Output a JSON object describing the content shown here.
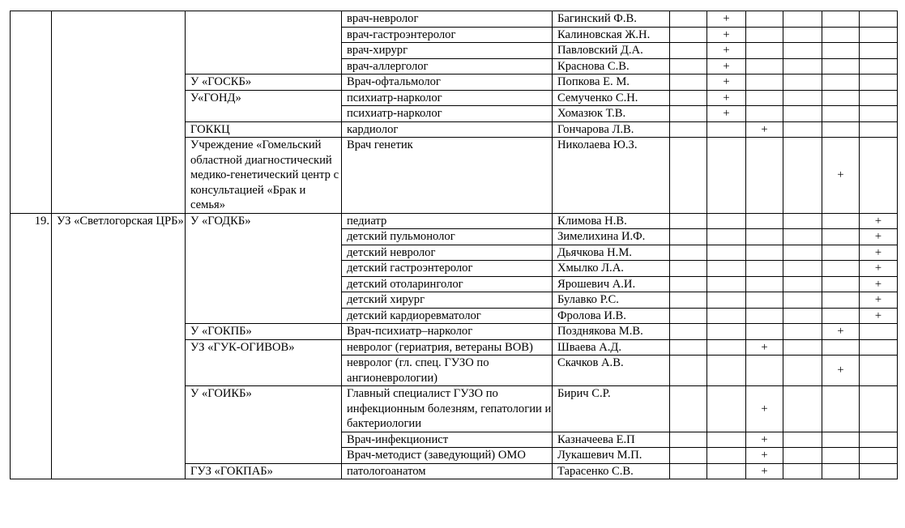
{
  "mark_symbol": "+",
  "groups": [
    {
      "number": "",
      "organization": "",
      "institutions": [
        {
          "name": "",
          "rows": [
            {
              "specialty": "врач-невролог",
              "doctor": "Багинский Ф.В.",
              "mark_column": 1
            },
            {
              "specialty": "врач-гастроэнтеролог",
              "doctor": "Калиновская Ж.Н.",
              "mark_column": 1
            },
            {
              "specialty": "врач-хирург",
              "doctor": "Павловский Д.А.",
              "mark_column": 1
            },
            {
              "specialty": "врач-аллерголог",
              "doctor": "Краснова С.В.",
              "mark_column": 1
            }
          ]
        },
        {
          "name": "У «ГОСКБ»",
          "rows": [
            {
              "specialty": "Врач-офтальмолог",
              "doctor": "Попкова Е. М.",
              "mark_column": 1
            }
          ]
        },
        {
          "name": "У«ГОНД»",
          "rows": [
            {
              "specialty": "психиатр-нарколог",
              "doctor": "Семученко С.Н.",
              "mark_column": 1
            },
            {
              "specialty": "психиатр-нарколог",
              "doctor": "Хомазюк Т.В.",
              "mark_column": 1
            }
          ]
        },
        {
          "name": "ГОККЦ",
          "rows": [
            {
              "specialty": "кардиолог",
              "doctor": "Гончарова Л.В.",
              "mark_column": 2
            }
          ]
        },
        {
          "name": "Учреждение «Гомельский областной диагностический медико-генетический центр с консультацией «Брак и семья»",
          "rows": [
            {
              "specialty": "Врач генетик",
              "doctor": "Николаева Ю.З.",
              "mark_column": 4
            }
          ]
        }
      ]
    },
    {
      "number": "19.",
      "organization": "УЗ «Светлогорская ЦРБ»",
      "institutions": [
        {
          "name": "У «ГОДКБ»",
          "rows": [
            {
              "specialty": "педиатр",
              "doctor": "Климова Н.В.",
              "mark_column": 5
            },
            {
              "specialty": "детский пульмонолог",
              "doctor": "Зимелихина И.Ф.",
              "mark_column": 5
            },
            {
              "specialty": "детский невролог",
              "doctor": "Дьячкова Н.М.",
              "mark_column": 5
            },
            {
              "specialty": "детский гастроэнтеролог",
              "doctor": "Хмылко Л.А.",
              "mark_column": 5
            },
            {
              "specialty": "детский отоларинголог",
              "doctor": "Ярошевич А.И.",
              "mark_column": 5
            },
            {
              "specialty": "детский хирург",
              "doctor": "Булавко Р.С.",
              "mark_column": 5
            },
            {
              "specialty": "детский кардиоревматолог",
              "doctor": "Фролова И.В.",
              "mark_column": 5
            }
          ]
        },
        {
          "name": "У «ГОКПБ»",
          "rows": [
            {
              "specialty": "Врач-психиатр–нарколог",
              "doctor": "Позднякова М.В.",
              "mark_column": 4
            }
          ]
        },
        {
          "name": "УЗ «ГУК-ОГИВОВ»",
          "rows": [
            {
              "specialty": "невролог (гериатрия, ветераны ВОВ)",
              "doctor": "Шваева А.Д.",
              "mark_column": 2
            },
            {
              "specialty": "невролог (гл. спец. ГУЗО по ангионеврологии)",
              "doctor": "Скачков А.В.",
              "mark_column": 4
            }
          ]
        },
        {
          "name": "У «ГОИКБ»",
          "rows": [
            {
              "specialty": "Главный специалист ГУЗО по инфекционным болезням, гепатологии и бактериологии",
              "doctor": "Бирич С.Р.",
              "mark_column": 2
            },
            {
              "specialty": "Врач-инфекционист",
              "doctor": "Казначеева Е.П",
              "mark_column": 2
            },
            {
              "specialty": "Врач-методист (заведующий) ОМО",
              "doctor": "Лукашевич М.П.",
              "mark_column": 2
            }
          ]
        },
        {
          "name": "ГУЗ «ГОКПАБ»",
          "rows": [
            {
              "specialty": "патологоанатом",
              "doctor": "Тарасенко С.В.",
              "mark_column": 2
            }
          ]
        }
      ]
    }
  ]
}
